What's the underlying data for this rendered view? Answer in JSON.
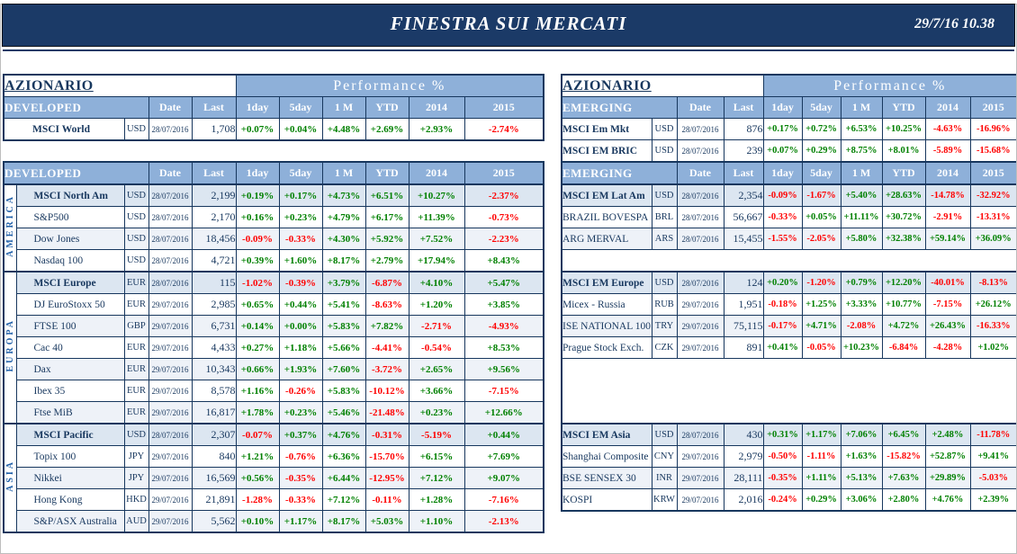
{
  "banner": {
    "title": "FINESTRA SUI MERCATI",
    "datetime": "29/7/16 10.38"
  },
  "perf_header": "Performance %",
  "columns": [
    "Date",
    "Last",
    "1day",
    "5day",
    "1 M",
    "YTD",
    "2014",
    "2015"
  ],
  "colors": {
    "banner_navy": "#1b3a67",
    "table_navy": "#17375e",
    "header_blue": "#8eb0d9",
    "positive": "#008000",
    "negative": "#ff0000",
    "region_label_blue": "#1f5fa8",
    "tint_row": "#dce6f1"
  },
  "tables": [
    {
      "title": "AZIONARIO",
      "group_header": "DEVELOPED",
      "summary_rows": [
        {
          "name": "MSCI World",
          "bold": true,
          "ccy": "USD",
          "date": "28/07/2016",
          "last": "1,708",
          "perf": [
            "+0.07%",
            "+0.04%",
            "+4.48%",
            "+2.69%",
            "+2.93%",
            "-2.74%"
          ]
        }
      ],
      "groups": [
        {
          "region": "AMERICA",
          "rows": [
            {
              "name": "MSCI North Am",
              "bold": true,
              "ccy": "USD",
              "date": "28/07/2016",
              "last": "2,199",
              "perf": [
                "+0.19%",
                "+0.17%",
                "+4.73%",
                "+6.51%",
                "+10.27%",
                "-2.37%"
              ]
            },
            {
              "name": "S&P500",
              "ccy": "USD",
              "date": "28/07/2016",
              "last": "2,170",
              "perf": [
                "+0.16%",
                "+0.23%",
                "+4.79%",
                "+6.17%",
                "+11.39%",
                "-0.73%"
              ]
            },
            {
              "name": "Dow Jones",
              "ccy": "USD",
              "date": "28/07/2016",
              "last": "18,456",
              "perf": [
                "-0.09%",
                "-0.33%",
                "+4.30%",
                "+5.92%",
                "+7.52%",
                "-2.23%"
              ]
            },
            {
              "name": "Nasdaq 100",
              "ccy": "USD",
              "date": "28/07/2016",
              "last": "4,721",
              "perf": [
                "+0.39%",
                "+1.60%",
                "+8.17%",
                "+2.79%",
                "+17.94%",
                "+8.43%"
              ]
            }
          ]
        },
        {
          "region": "EUROPA",
          "rows": [
            {
              "name": "MSCI Europe",
              "bold": true,
              "ccy": "EUR",
              "date": "28/07/2016",
              "last": "115",
              "perf": [
                "-1.02%",
                "-0.39%",
                "+3.79%",
                "-6.87%",
                "+4.10%",
                "+5.47%"
              ]
            },
            {
              "name": "DJ EuroStoxx 50",
              "ccy": "EUR",
              "date": "29/07/2016",
              "last": "2,985",
              "perf": [
                "+0.65%",
                "+0.44%",
                "+5.41%",
                "-8.63%",
                "+1.20%",
                "+3.85%"
              ]
            },
            {
              "name": "FTSE 100",
              "ccy": "GBP",
              "date": "29/07/2016",
              "last": "6,731",
              "perf": [
                "+0.14%",
                "+0.00%",
                "+5.83%",
                "+7.82%",
                "-2.71%",
                "-4.93%"
              ]
            },
            {
              "name": "Cac 40",
              "ccy": "EUR",
              "date": "29/07/2016",
              "last": "4,433",
              "perf": [
                "+0.27%",
                "+1.18%",
                "+5.66%",
                "-4.41%",
                "-0.54%",
                "+8.53%"
              ]
            },
            {
              "name": "Dax",
              "ccy": "EUR",
              "date": "29/07/2016",
              "last": "10,343",
              "perf": [
                "+0.66%",
                "+1.93%",
                "+7.60%",
                "-3.72%",
                "+2.65%",
                "+9.56%"
              ]
            },
            {
              "name": "Ibex 35",
              "ccy": "EUR",
              "date": "29/07/2016",
              "last": "8,578",
              "perf": [
                "+1.16%",
                "-0.26%",
                "+5.83%",
                "-10.12%",
                "+3.66%",
                "-7.15%"
              ]
            },
            {
              "name": "Ftse MiB",
              "ccy": "EUR",
              "date": "29/07/2016",
              "last": "16,817",
              "perf": [
                "+1.78%",
                "+0.23%",
                "+5.46%",
                "-21.48%",
                "+0.23%",
                "+12.66%"
              ]
            }
          ]
        },
        {
          "region": "ASIA",
          "rows": [
            {
              "name": "MSCI Pacific",
              "bold": true,
              "ccy": "USD",
              "date": "28/07/2016",
              "last": "2,307",
              "perf": [
                "-0.07%",
                "+0.37%",
                "+4.76%",
                "-0.31%",
                "-5.19%",
                "+0.44%"
              ]
            },
            {
              "name": "Topix 100",
              "ccy": "JPY",
              "date": "29/07/2016",
              "last": "840",
              "perf": [
                "+1.21%",
                "-0.76%",
                "+6.36%",
                "-15.70%",
                "+6.15%",
                "+7.69%"
              ]
            },
            {
              "name": "Nikkei",
              "ccy": "JPY",
              "date": "29/07/2016",
              "last": "16,569",
              "perf": [
                "+0.56%",
                "-0.35%",
                "+6.44%",
                "-12.95%",
                "+7.12%",
                "+9.07%"
              ]
            },
            {
              "name": "Hong Kong",
              "ccy": "HKD",
              "date": "29/07/2016",
              "last": "21,891",
              "perf": [
                "-1.28%",
                "-0.33%",
                "+7.12%",
                "-0.11%",
                "+1.28%",
                "-7.16%"
              ]
            },
            {
              "name": "S&P/ASX Australia",
              "ccy": "AUD",
              "date": "29/07/2016",
              "last": "5,562",
              "perf": [
                "+0.10%",
                "+1.17%",
                "+8.17%",
                "+5.03%",
                "+1.10%",
                "-2.13%"
              ]
            }
          ]
        }
      ]
    },
    {
      "title": "AZIONARIO",
      "group_header": "EMERGING",
      "summary_rows": [
        {
          "name": "MSCI Em Mkt",
          "bold": true,
          "ccy": "USD",
          "date": "28/07/2016",
          "last": "876",
          "perf": [
            "+0.17%",
            "+0.72%",
            "+6.53%",
            "+10.25%",
            "-4.63%",
            "-16.96%"
          ]
        },
        {
          "name": "MSCI EM BRIC",
          "bold": true,
          "ccy": "USD",
          "date": "28/07/2016",
          "last": "239",
          "perf": [
            "+0.07%",
            "+0.29%",
            "+8.75%",
            "+8.01%",
            "-5.89%",
            "-15.68%"
          ]
        }
      ],
      "groups": [
        {
          "rows": [
            {
              "name": "MSCI EM Lat Am",
              "bold": true,
              "ccy": "USD",
              "date": "28/07/2016",
              "last": "2,354",
              "perf": [
                "-0.09%",
                "-1.67%",
                "+5.40%",
                "+28.63%",
                "-14.78%",
                "-32.92%"
              ]
            },
            {
              "name": "BRAZIL BOVESPA",
              "ccy": "BRL",
              "date": "28/07/2016",
              "last": "56,667",
              "perf": [
                "-0.33%",
                "+0.05%",
                "+11.11%",
                "+30.72%",
                "-2.91%",
                "-13.31%"
              ]
            },
            {
              "name": "ARG MERVAL",
              "ccy": "ARS",
              "date": "28/07/2016",
              "last": "15,455",
              "perf": [
                "-1.55%",
                "-2.05%",
                "+5.80%",
                "+32.38%",
                "+59.14%",
                "+36.09%"
              ]
            }
          ]
        },
        {
          "blank_rows_before": 1,
          "rows": [
            {
              "name": "MSCI EM Europe",
              "bold": true,
              "ccy": "USD",
              "date": "28/07/2016",
              "last": "124",
              "perf": [
                "+0.20%",
                "-1.20%",
                "+0.79%",
                "+12.20%",
                "-40.01%",
                "-8.13%"
              ]
            },
            {
              "name": "Micex - Russia",
              "ccy": "RUB",
              "date": "29/07/2016",
              "last": "1,951",
              "perf": [
                "-0.18%",
                "+1.25%",
                "+3.33%",
                "+10.77%",
                "-7.15%",
                "+26.12%"
              ]
            },
            {
              "name": "ISE NATIONAL 100",
              "ccy": "TRY",
              "date": "29/07/2016",
              "last": "75,115",
              "perf": [
                "-0.17%",
                "+4.71%",
                "-2.08%",
                "+4.72%",
                "+26.43%",
                "-16.33%"
              ]
            },
            {
              "name": "Prague Stock Exch.",
              "ccy": "CZK",
              "date": "29/07/2016",
              "last": "891",
              "perf": [
                "+0.41%",
                "-0.05%",
                "+10.23%",
                "-6.84%",
                "-4.28%",
                "+1.02%"
              ]
            }
          ]
        },
        {
          "blank_rows_before": 3,
          "rows": [
            {
              "name": "MSCI EM Asia",
              "bold": true,
              "ccy": "USD",
              "date": "28/07/2016",
              "last": "430",
              "perf": [
                "+0.31%",
                "+1.17%",
                "+7.06%",
                "+6.45%",
                "+2.48%",
                "-11.78%"
              ]
            },
            {
              "name": "Shanghai Composite",
              "ccy": "CNY",
              "date": "29/07/2016",
              "last": "2,979",
              "perf": [
                "-0.50%",
                "-1.11%",
                "+1.63%",
                "-15.82%",
                "+52.87%",
                "+9.41%"
              ]
            },
            {
              "name": "BSE SENSEX 30",
              "ccy": "INR",
              "date": "29/07/2016",
              "last": "28,111",
              "perf": [
                "-0.35%",
                "+1.11%",
                "+5.13%",
                "+7.63%",
                "+29.89%",
                "-5.03%"
              ]
            },
            {
              "name": "KOSPI",
              "ccy": "KRW",
              "date": "29/07/2016",
              "last": "2,016",
              "perf": [
                "-0.24%",
                "+0.29%",
                "+3.06%",
                "+2.80%",
                "+4.76%",
                "+2.39%"
              ]
            }
          ]
        }
      ]
    }
  ]
}
